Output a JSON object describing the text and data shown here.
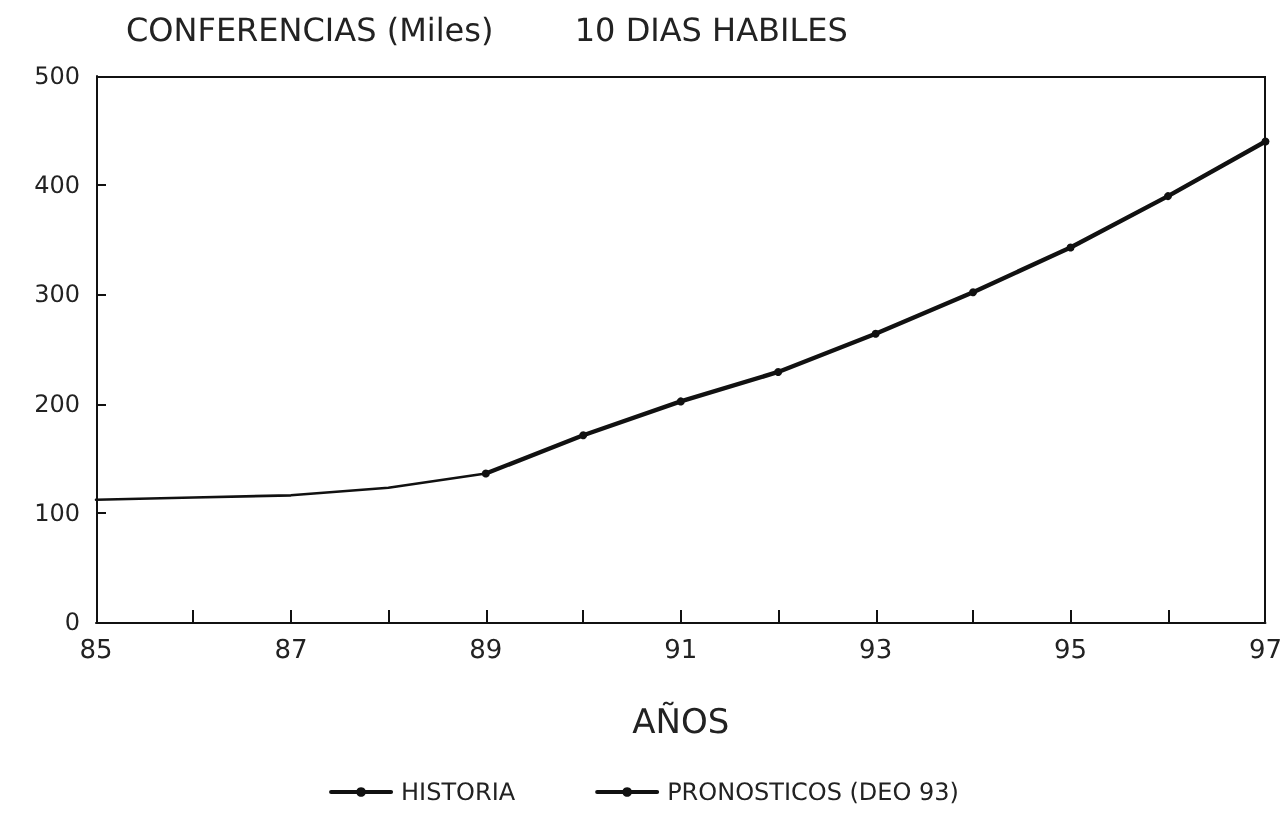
{
  "chart_data": {
    "type": "line",
    "title": "CONFERENCIAS (Miles)        10 DIAS HABILES",
    "xlabel": "AÑOS",
    "xlim": [
      85,
      97
    ],
    "xticks": [
      85,
      {
        "value": 86,
        "label": null
      },
      87,
      {
        "value": 88,
        "label": null
      },
      89,
      {
        "value": 90,
        "label": null
      },
      91,
      {
        "value": 92,
        "label": null
      },
      93,
      {
        "value": 94,
        "label": null
      },
      95,
      {
        "value": 96,
        "label": null
      },
      97
    ],
    "ylim": [
      0,
      500
    ],
    "yticks": [
      0,
      100,
      200,
      300,
      400,
      500
    ],
    "grid": false,
    "legend": "bottom",
    "series": [
      {
        "name": "HISTORIA",
        "color": "#111111",
        "x": [
          85,
          86,
          87,
          88,
          89
        ],
        "values": [
          112,
          114,
          116,
          123,
          136
        ],
        "marker": "none"
      },
      {
        "name": "PRONOSTICOS (DEO 93)",
        "color": "#111111",
        "x": [
          89,
          90,
          91,
          92,
          93,
          94,
          95,
          96,
          97
        ],
        "values": [
          136,
          171,
          202,
          229,
          264,
          302,
          343,
          390,
          440
        ],
        "marker": "circle"
      }
    ]
  }
}
